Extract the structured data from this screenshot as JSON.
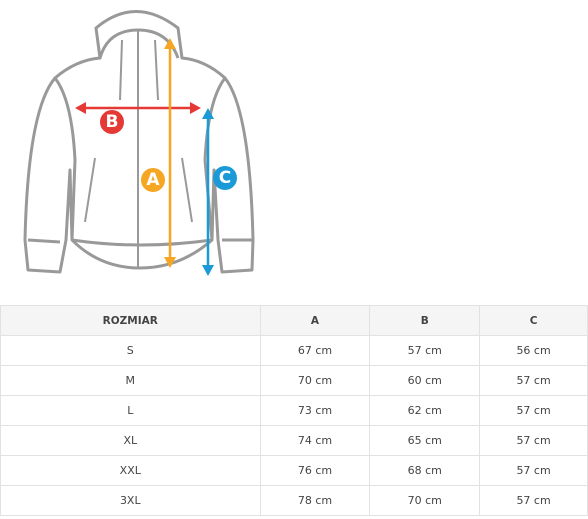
{
  "diagram": {
    "labels": [
      "A",
      "B",
      "C"
    ]
  },
  "table": {
    "header": [
      "ROZMIAR",
      "A",
      "B",
      "C"
    ],
    "rows": [
      [
        "S",
        "67 cm",
        "57 cm",
        "56 cm"
      ],
      [
        "M",
        "70 cm",
        "60 cm",
        "57 cm"
      ],
      [
        "L",
        "73 cm",
        "62 cm",
        "57 cm"
      ],
      [
        "XL",
        "74 cm",
        "65 cm",
        "57 cm"
      ],
      [
        "XXL",
        "76 cm",
        "68 cm",
        "57 cm"
      ],
      [
        "3XL",
        "78 cm",
        "70 cm",
        "57 cm"
      ]
    ]
  }
}
